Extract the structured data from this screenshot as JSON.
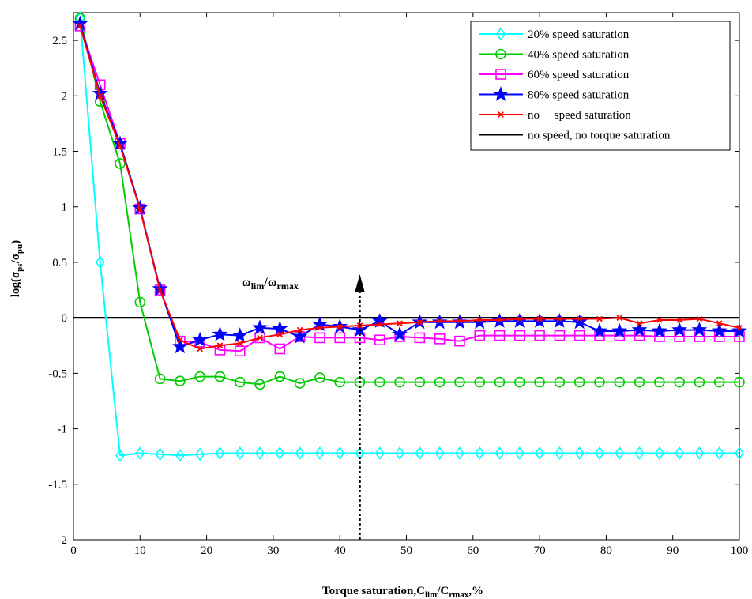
{
  "chart_data": {
    "type": "line",
    "xlim": [
      0,
      100
    ],
    "ylim": [
      -2,
      2.75
    ],
    "xticks": [
      0,
      10,
      20,
      30,
      40,
      50,
      60,
      70,
      80,
      90,
      100
    ],
    "yticks": [
      -2,
      -1.5,
      -1,
      -0.5,
      0,
      0.5,
      1,
      1.5,
      2,
      2.5
    ],
    "xtick_labels": [
      "0",
      "10",
      "20",
      "30",
      "40",
      "50",
      "60",
      "70",
      "80",
      "90",
      "100"
    ],
    "ytick_labels": [
      "-2",
      "-1.5",
      "-1",
      "-0.5",
      "0",
      "0.5",
      "1",
      "1.5",
      "2",
      "2.5"
    ],
    "xlabel": {
      "main": "Torque saturation,C",
      "sub1": "lim",
      "mid": "/C",
      "sub2": "rmax",
      "tail": ",%"
    },
    "ylabel": {
      "main": "log(σ",
      "sub1": "ps",
      "mid": "/σ",
      "sub2": "pu",
      "tail": ")"
    },
    "grid": false,
    "legend_position": "top-right",
    "annotation": {
      "omega": "ω",
      "sub1": "lim",
      "slash": "/ω",
      "sub2": "rmax",
      "x": 43,
      "y_from": -2,
      "y_to": 0.35
    },
    "series": [
      {
        "name": "20% speed saturation",
        "color": "#00ffff",
        "marker": "diamond",
        "x": [
          1,
          4,
          7,
          10,
          13,
          16,
          19,
          22,
          25,
          28,
          31,
          34,
          37,
          40,
          43,
          46,
          49,
          52,
          55,
          58,
          61,
          64,
          67,
          70,
          73,
          76,
          79,
          82,
          85,
          88,
          91,
          94,
          97,
          100
        ],
        "y": [
          2.7,
          0.5,
          -1.24,
          -1.22,
          -1.23,
          -1.24,
          -1.23,
          -1.22,
          -1.22,
          -1.22,
          -1.22,
          -1.22,
          -1.22,
          -1.22,
          -1.22,
          -1.22,
          -1.22,
          -1.22,
          -1.22,
          -1.22,
          -1.22,
          -1.22,
          -1.22,
          -1.22,
          -1.22,
          -1.22,
          -1.22,
          -1.22,
          -1.22,
          -1.22,
          -1.22,
          -1.22,
          -1.22,
          -1.22
        ]
      },
      {
        "name": "40% speed saturation",
        "color": "#00cc00",
        "marker": "circle",
        "x": [
          1,
          4,
          7,
          10,
          13,
          16,
          19,
          22,
          25,
          28,
          31,
          34,
          37,
          40,
          43,
          46,
          49,
          52,
          55,
          58,
          61,
          64,
          67,
          70,
          73,
          76,
          79,
          82,
          85,
          88,
          91,
          94,
          97,
          100
        ],
        "y": [
          2.7,
          1.95,
          1.39,
          0.14,
          -0.55,
          -0.57,
          -0.53,
          -0.53,
          -0.58,
          -0.6,
          -0.53,
          -0.59,
          -0.54,
          -0.58,
          -0.58,
          -0.58,
          -0.58,
          -0.58,
          -0.58,
          -0.58,
          -0.58,
          -0.58,
          -0.58,
          -0.58,
          -0.58,
          -0.58,
          -0.58,
          -0.58,
          -0.58,
          -0.58,
          -0.58,
          -0.58,
          -0.58,
          -0.58
        ]
      },
      {
        "name": "60% speed saturation",
        "color": "#ff00ff",
        "marker": "square",
        "x": [
          1,
          4,
          7,
          10,
          13,
          16,
          19,
          22,
          25,
          28,
          31,
          34,
          37,
          40,
          43,
          46,
          49,
          52,
          55,
          58,
          61,
          64,
          67,
          70,
          73,
          76,
          79,
          82,
          85,
          88,
          91,
          94,
          97,
          100
        ],
        "y": [
          2.63,
          2.1,
          1.57,
          0.98,
          0.25,
          -0.21,
          -0.22,
          -0.29,
          -0.3,
          -0.18,
          -0.28,
          -0.17,
          -0.18,
          -0.18,
          -0.18,
          -0.2,
          -0.17,
          -0.18,
          -0.19,
          -0.21,
          -0.16,
          -0.16,
          -0.16,
          -0.16,
          -0.16,
          -0.16,
          -0.16,
          -0.16,
          -0.16,
          -0.17,
          -0.17,
          -0.17,
          -0.17,
          -0.17
        ]
      },
      {
        "name": "80% speed saturation",
        "color": "#0000ff",
        "marker": "star",
        "x": [
          1,
          4,
          7,
          10,
          13,
          16,
          19,
          22,
          25,
          28,
          31,
          34,
          37,
          40,
          43,
          46,
          49,
          52,
          55,
          58,
          61,
          64,
          67,
          70,
          73,
          76,
          79,
          82,
          85,
          88,
          91,
          94,
          97,
          100
        ],
        "y": [
          2.65,
          2.02,
          1.57,
          0.99,
          0.26,
          -0.26,
          -0.2,
          -0.15,
          -0.16,
          -0.09,
          -0.1,
          -0.17,
          -0.06,
          -0.08,
          -0.11,
          -0.03,
          -0.15,
          -0.04,
          -0.04,
          -0.04,
          -0.04,
          -0.03,
          -0.03,
          -0.03,
          -0.03,
          -0.04,
          -0.12,
          -0.12,
          -0.11,
          -0.12,
          -0.11,
          -0.11,
          -0.12,
          -0.12
        ]
      },
      {
        "name": "no     speed saturation",
        "color": "#ff0000",
        "marker": "x",
        "x": [
          1,
          4,
          7,
          10,
          13,
          16,
          19,
          22,
          25,
          28,
          31,
          34,
          37,
          40,
          43,
          46,
          49,
          52,
          55,
          58,
          61,
          64,
          67,
          70,
          73,
          76,
          79,
          82,
          85,
          88,
          91,
          94,
          97,
          100
        ],
        "y": [
          2.63,
          2.0,
          1.55,
          0.98,
          0.25,
          -0.2,
          -0.28,
          -0.25,
          -0.23,
          -0.18,
          -0.15,
          -0.11,
          -0.09,
          -0.08,
          -0.07,
          -0.06,
          -0.05,
          -0.04,
          -0.03,
          -0.03,
          -0.02,
          -0.02,
          -0.01,
          -0.01,
          -0.01,
          -0.01,
          -0.01,
          0.0,
          -0.05,
          -0.02,
          -0.02,
          -0.01,
          -0.05,
          -0.09
        ]
      },
      {
        "name": "no speed, no torque saturation",
        "color": "#000000",
        "marker": "none",
        "x": [
          0,
          100
        ],
        "y": [
          0,
          0
        ]
      }
    ]
  }
}
